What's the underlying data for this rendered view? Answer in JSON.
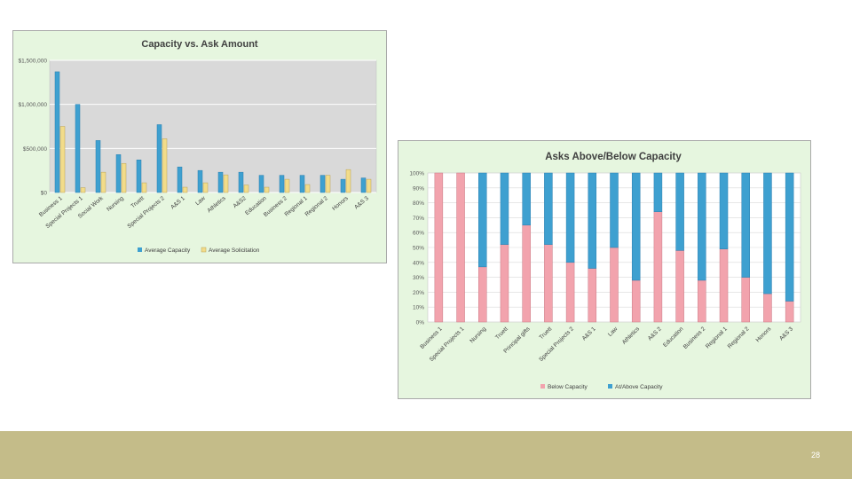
{
  "slide": {
    "page_number": "28"
  },
  "colors": {
    "panel_bg": "#e6f6df",
    "plot_bg": "#d9d9d9",
    "blue": "#3ea0d0",
    "tan": "#f2dc8a",
    "pink": "#f2a3ad",
    "gridline": "#ffffff",
    "footer": "#c4bc89"
  },
  "chart_data": [
    {
      "type": "bar",
      "title": "Capacity vs. Ask Amount",
      "xlabel": "",
      "ylabel": "",
      "ylim": [
        0,
        1500000
      ],
      "ytick_values": [
        0,
        500000,
        1000000,
        1500000
      ],
      "ytick_labels": [
        "$0",
        "$500,000",
        "$1,000,000",
        "$1,500,000"
      ],
      "categories": [
        "Business 1",
        "Special Projects 1",
        "Social Work",
        "Nursing",
        "Truett",
        "Special Projects 2",
        "A&S 1",
        "Law",
        "Athletics",
        "A&S2",
        "Education",
        "Business 2",
        "Regional 1",
        "Regional 2",
        "Honors",
        "A&S 3"
      ],
      "series": [
        {
          "name": "Average Capacity",
          "values": [
            1370000,
            1000000,
            590000,
            430000,
            370000,
            770000,
            290000,
            250000,
            230000,
            230000,
            195000,
            195000,
            195000,
            195000,
            150000,
            165000
          ]
        },
        {
          "name": "Average Solicitation",
          "values": [
            750000,
            55000,
            230000,
            330000,
            110000,
            610000,
            60000,
            110000,
            200000,
            85000,
            60000,
            150000,
            90000,
            195000,
            260000,
            150000
          ]
        }
      ],
      "legend_position": "bottom",
      "grid": true
    },
    {
      "type": "bar",
      "stacked": true,
      "title": "Asks Above/Below Capacity",
      "xlabel": "",
      "ylabel": "",
      "ylim": [
        0,
        100
      ],
      "ytick_labels": [
        "0%",
        "10%",
        "20%",
        "30%",
        "40%",
        "50%",
        "60%",
        "70%",
        "80%",
        "90%",
        "100%"
      ],
      "categories": [
        "Business 1",
        "Special Projects 1",
        "Nursing",
        "Truett",
        "Principal gifts",
        "Truett",
        "Special Projects 2",
        "A&S 1",
        "Law",
        "Athletics",
        "A&S 2",
        "Education",
        "Business 2",
        "Regional 1",
        "Regional 2",
        "Honors",
        "A&S 3"
      ],
      "series": [
        {
          "name": "Below Capacity",
          "values": [
            100,
            100,
            37,
            52,
            65,
            52,
            40,
            36,
            50,
            28,
            74,
            48,
            28,
            49,
            30,
            19,
            14
          ]
        },
        {
          "name": "At/Above Capacity",
          "values": [
            0,
            0,
            63,
            48,
            35,
            48,
            60,
            64,
            50,
            72,
            26,
            52,
            72,
            51,
            70,
            81,
            86
          ]
        }
      ],
      "legend_position": "bottom",
      "grid": true
    }
  ]
}
